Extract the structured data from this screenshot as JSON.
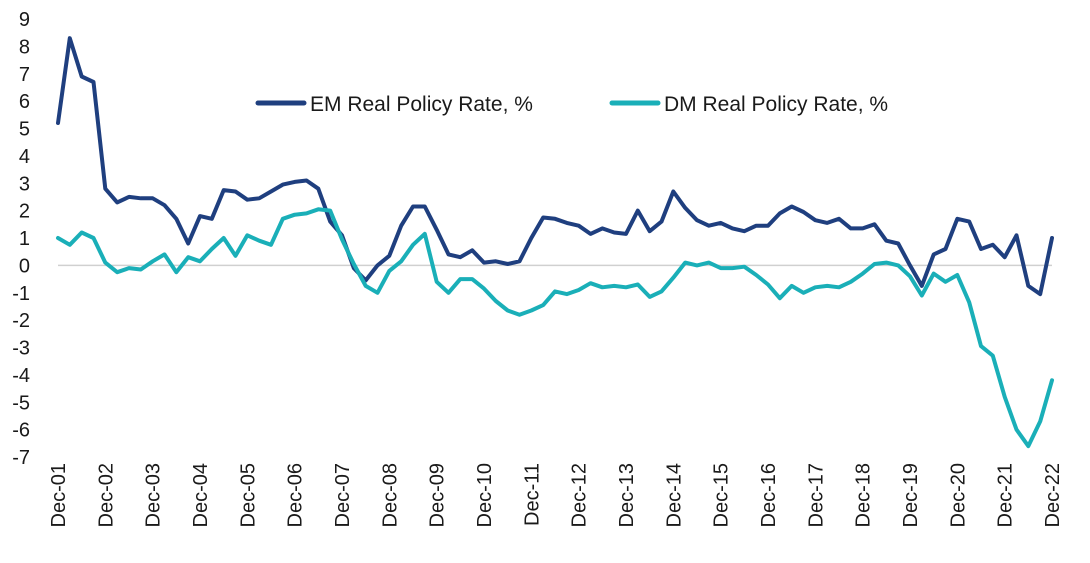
{
  "chart_data": {
    "type": "line",
    "title": "",
    "xlabel": "",
    "ylabel": "",
    "ylim": [
      -7,
      9
    ],
    "yticks": [
      9,
      8,
      7,
      6,
      5,
      4,
      3,
      2,
      1,
      0,
      -1,
      -2,
      -3,
      -4,
      -5,
      -6,
      -7
    ],
    "x_tick_labels": [
      "Dec-01",
      "Dec-02",
      "Dec-03",
      "Dec-04",
      "Dec-05",
      "Dec-06",
      "Dec-07",
      "Dec-08",
      "Dec-09",
      "Dec-10",
      "Dec-11",
      "Dec-12",
      "Dec-13",
      "Dec-14",
      "Dec-15",
      "Dec-16",
      "Dec-17",
      "Dec-18",
      "Dec-19",
      "Dec-20",
      "Dec-21",
      "Dec-22"
    ],
    "x_start": "Dec-01",
    "x_frequency": "quarterly",
    "grid": false,
    "legend_position": "top",
    "series": [
      {
        "name": "EM Real Policy Rate, %",
        "color": "#1f3f7f",
        "values": [
          5.2,
          8.3,
          6.9,
          6.7,
          2.8,
          2.3,
          2.5,
          2.45,
          2.45,
          2.2,
          1.7,
          0.8,
          1.8,
          1.7,
          2.75,
          2.7,
          2.4,
          2.45,
          2.7,
          2.95,
          3.05,
          3.1,
          2.8,
          1.6,
          1.1,
          -0.1,
          -0.55,
          0.0,
          0.35,
          1.45,
          2.15,
          2.15,
          1.3,
          0.4,
          0.3,
          0.55,
          0.1,
          0.15,
          0.05,
          0.15,
          1.0,
          1.75,
          1.7,
          1.55,
          1.45,
          1.15,
          1.35,
          1.2,
          1.15,
          2.0,
          1.25,
          1.6,
          2.7,
          2.1,
          1.65,
          1.45,
          1.55,
          1.35,
          1.25,
          1.45,
          1.45,
          1.9,
          2.15,
          1.95,
          1.65,
          1.55,
          1.7,
          1.35,
          1.35,
          1.5,
          0.9,
          0.8,
          0.0,
          -0.75,
          0.4,
          0.6,
          1.7,
          1.6,
          0.6,
          0.75,
          0.3,
          1.1,
          -0.75,
          -1.05,
          1.0
        ]
      },
      {
        "name": "DM Real Policy Rate, %",
        "color": "#1aafb8",
        "values": [
          1.0,
          0.75,
          1.2,
          1.0,
          0.1,
          -0.25,
          -0.1,
          -0.15,
          0.15,
          0.4,
          -0.25,
          0.3,
          0.15,
          0.6,
          1.0,
          0.35,
          1.1,
          0.9,
          0.75,
          1.7,
          1.85,
          1.9,
          2.05,
          2.0,
          0.95,
          0.05,
          -0.75,
          -1.0,
          -0.2,
          0.15,
          0.75,
          1.15,
          -0.6,
          -1.0,
          -0.5,
          -0.5,
          -0.85,
          -1.3,
          -1.65,
          -1.8,
          -1.65,
          -1.45,
          -0.95,
          -1.05,
          -0.9,
          -0.65,
          -0.8,
          -0.75,
          -0.8,
          -0.7,
          -1.15,
          -0.95,
          -0.45,
          0.1,
          0.0,
          0.1,
          -0.1,
          -0.1,
          -0.05,
          -0.35,
          -0.7,
          -1.2,
          -0.75,
          -1.0,
          -0.8,
          -0.75,
          -0.8,
          -0.6,
          -0.3,
          0.05,
          0.1,
          0.0,
          -0.4,
          -1.1,
          -0.3,
          -0.6,
          -0.35,
          -1.35,
          -2.95,
          -3.3,
          -4.8,
          -6.0,
          -6.6,
          -5.7,
          -4.2
        ]
      }
    ]
  }
}
